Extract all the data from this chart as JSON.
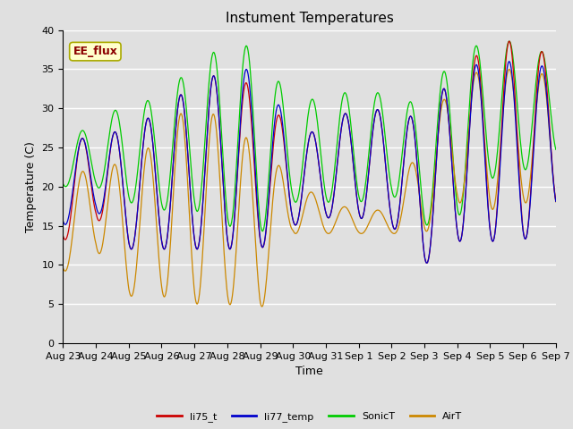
{
  "title": "Instument Temperatures",
  "xlabel": "Time",
  "ylabel": "Temperature (C)",
  "ylim": [
    0,
    40
  ],
  "n_days": 15,
  "background_color": "#e0e0e0",
  "plot_bg_color": "#e0e0e0",
  "grid_color": "white",
  "series_colors": {
    "li75_t": "#cc0000",
    "li77_temp": "#0000cc",
    "SonicT": "#00cc00",
    "AirT": "#cc8800"
  },
  "annotation_text": "EE_flux",
  "annotation_color": "#8b0000",
  "annotation_bg": "#ffffcc",
  "annotation_edge": "#aaaa00",
  "x_tick_labels": [
    "Aug 23",
    "Aug 24",
    "Aug 25",
    "Aug 26",
    "Aug 27",
    "Aug 28",
    "Aug 29",
    "Aug 30",
    "Aug 31",
    "Sep 1",
    "Sep 2",
    "Sep 3",
    "Sep 4",
    "Sep 5",
    "Sep 6",
    "Sep 7"
  ],
  "title_fontsize": 11,
  "axis_fontsize": 9,
  "tick_fontsize": 8,
  "legend_fontsize": 8
}
